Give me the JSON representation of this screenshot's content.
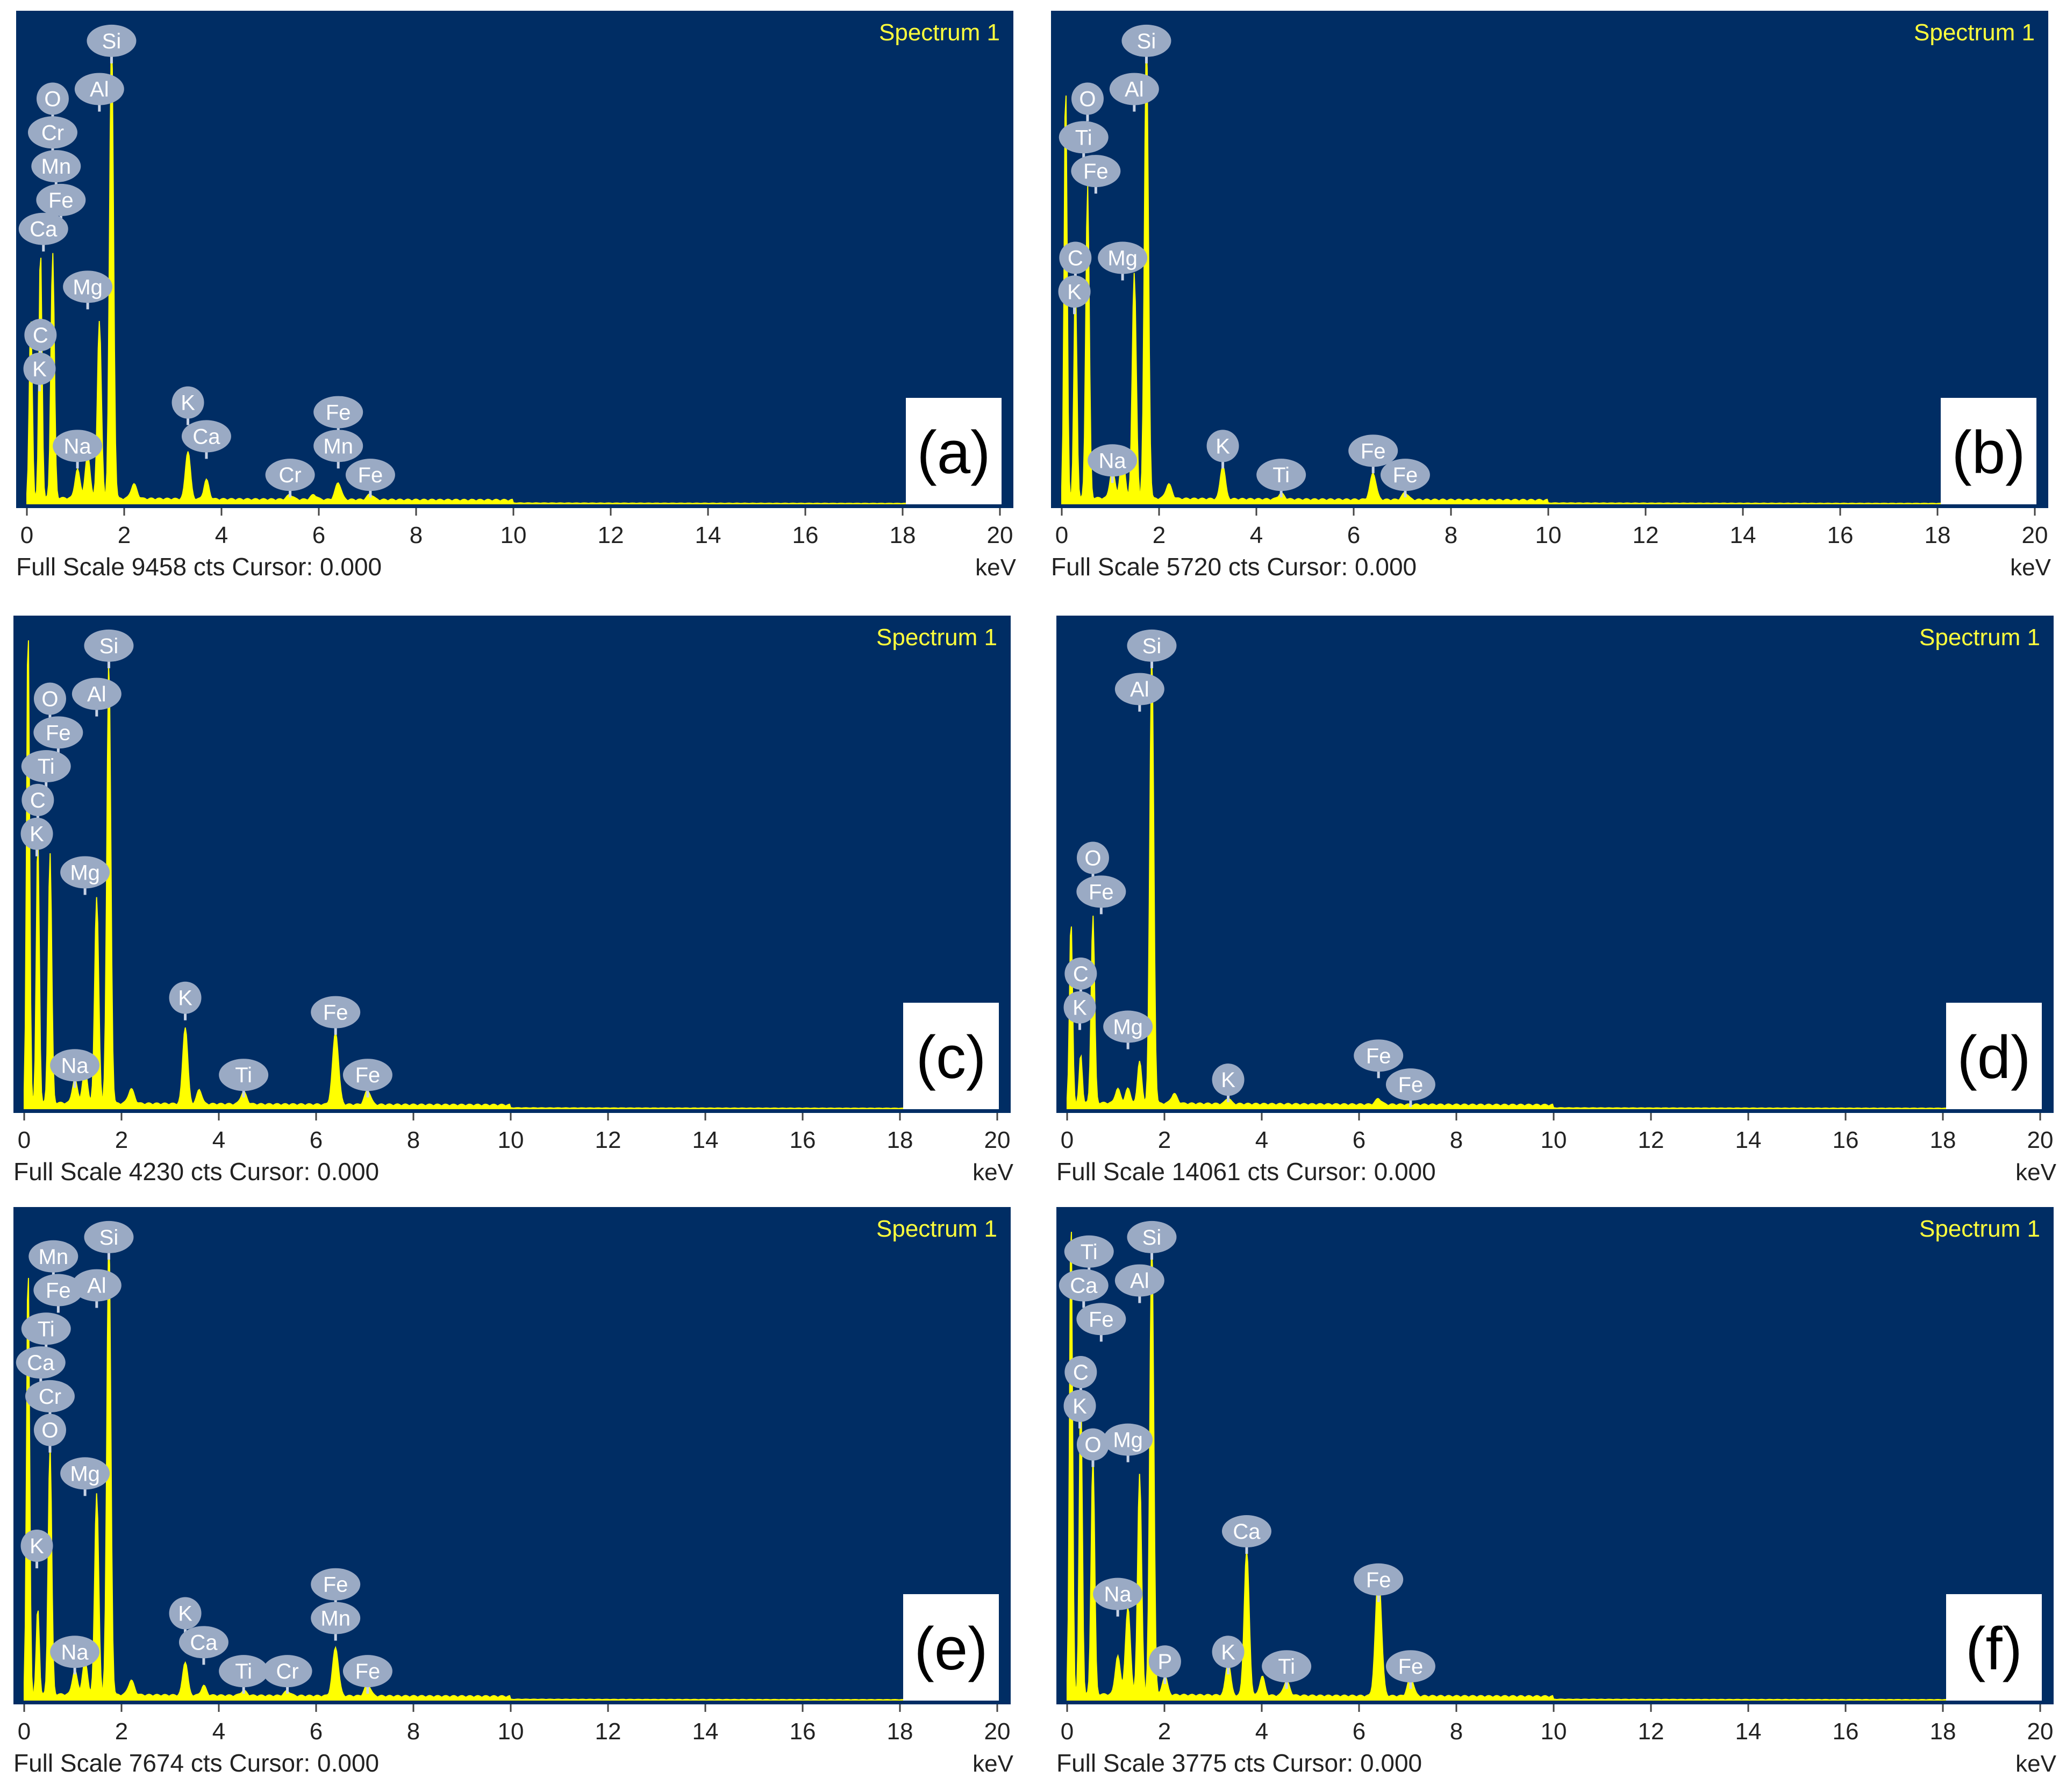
{
  "colors": {
    "plot_background": "#002d64",
    "spectrum": "#ffff00",
    "spectrum_title": "#ffff3c",
    "element_marker": "#9aaac4",
    "marker_line": "#c8d2e4"
  },
  "chart_data": [
    {
      "type": "area",
      "panel": "(a)",
      "title": "Spectrum 1",
      "xlabel": "keV",
      "xlim": [
        0,
        20
      ],
      "x_ticks": [
        0,
        2,
        4,
        6,
        8,
        10,
        12,
        14,
        16,
        18,
        20
      ],
      "full_scale_cts": 9458,
      "footer": "Full Scale 9458 cts Cursor: 0.000",
      "peaks": [
        {
          "x": 0.08,
          "y": 0.38,
          "w": 0.03
        },
        {
          "x": 0.28,
          "y": 0.52,
          "w": 0.03
        },
        {
          "x": 0.53,
          "y": 0.51,
          "w": 0.035
        },
        {
          "x": 1.04,
          "y": 0.06,
          "w": 0.05
        },
        {
          "x": 1.25,
          "y": 0.09,
          "w": 0.05
        },
        {
          "x": 1.49,
          "y": 0.37,
          "w": 0.04
        },
        {
          "x": 1.74,
          "y": 0.96,
          "w": 0.04
        },
        {
          "x": 2.2,
          "y": 0.03,
          "w": 0.06
        },
        {
          "x": 3.31,
          "y": 0.1,
          "w": 0.05
        },
        {
          "x": 3.69,
          "y": 0.04,
          "w": 0.05
        },
        {
          "x": 5.41,
          "y": 0.01,
          "w": 0.06
        },
        {
          "x": 5.9,
          "y": 0.01,
          "w": 0.06
        },
        {
          "x": 6.4,
          "y": 0.035,
          "w": 0.06
        },
        {
          "x": 7.06,
          "y": 0.012,
          "w": 0.06
        }
      ],
      "markers": [
        {
          "el": "Si",
          "x": 1.74,
          "y": 0.96
        },
        {
          "el": "Al",
          "x": 1.49,
          "y": 0.86
        },
        {
          "el": "O",
          "x": 0.53,
          "y": 0.84
        },
        {
          "el": "Cr",
          "x": 0.53,
          "y": 0.77
        },
        {
          "el": "Mn",
          "x": 0.6,
          "y": 0.7
        },
        {
          "el": "Fe",
          "x": 0.7,
          "y": 0.63
        },
        {
          "el": "Ca",
          "x": 0.34,
          "y": 0.57
        },
        {
          "el": "Mg",
          "x": 1.25,
          "y": 0.45
        },
        {
          "el": "C",
          "x": 0.28,
          "y": 0.35
        },
        {
          "el": "K",
          "x": 0.26,
          "y": 0.28
        },
        {
          "el": "Na",
          "x": 1.04,
          "y": 0.12
        },
        {
          "el": "K",
          "x": 3.31,
          "y": 0.21
        },
        {
          "el": "Ca",
          "x": 3.69,
          "y": 0.14
        },
        {
          "el": "Fe",
          "x": 6.4,
          "y": 0.19
        },
        {
          "el": "Mn",
          "x": 6.4,
          "y": 0.12
        },
        {
          "el": "Cr",
          "x": 5.41,
          "y": 0.06
        },
        {
          "el": "Fe",
          "x": 7.06,
          "y": 0.06
        }
      ]
    },
    {
      "type": "area",
      "panel": "(b)",
      "title": "Spectrum 1",
      "xlabel": "keV",
      "xlim": [
        0,
        20
      ],
      "x_ticks": [
        0,
        2,
        4,
        6,
        8,
        10,
        12,
        14,
        16,
        18,
        20
      ],
      "full_scale_cts": 5720,
      "footer": "Full Scale 5720 cts Cursor: 0.000",
      "peaks": [
        {
          "x": 0.08,
          "y": 0.87,
          "w": 0.03
        },
        {
          "x": 0.28,
          "y": 0.45,
          "w": 0.03
        },
        {
          "x": 0.53,
          "y": 0.65,
          "w": 0.035
        },
        {
          "x": 1.04,
          "y": 0.06,
          "w": 0.05
        },
        {
          "x": 1.25,
          "y": 0.09,
          "w": 0.05
        },
        {
          "x": 1.49,
          "y": 0.47,
          "w": 0.04
        },
        {
          "x": 1.74,
          "y": 0.96,
          "w": 0.04
        },
        {
          "x": 2.2,
          "y": 0.03,
          "w": 0.06
        },
        {
          "x": 3.31,
          "y": 0.07,
          "w": 0.05
        },
        {
          "x": 4.51,
          "y": 0.012,
          "w": 0.06
        },
        {
          "x": 6.4,
          "y": 0.055,
          "w": 0.06
        },
        {
          "x": 7.06,
          "y": 0.015,
          "w": 0.06
        }
      ],
      "markers": [
        {
          "el": "Si",
          "x": 1.74,
          "y": 0.96
        },
        {
          "el": "Al",
          "x": 1.49,
          "y": 0.86
        },
        {
          "el": "O",
          "x": 0.53,
          "y": 0.84
        },
        {
          "el": "Ti",
          "x": 0.45,
          "y": 0.76
        },
        {
          "el": "Fe",
          "x": 0.7,
          "y": 0.69
        },
        {
          "el": "C",
          "x": 0.28,
          "y": 0.51
        },
        {
          "el": "Mg",
          "x": 1.25,
          "y": 0.51
        },
        {
          "el": "K",
          "x": 0.26,
          "y": 0.44
        },
        {
          "el": "Na",
          "x": 1.04,
          "y": 0.09
        },
        {
          "el": "K",
          "x": 3.31,
          "y": 0.12
        },
        {
          "el": "Ti",
          "x": 4.51,
          "y": 0.06
        },
        {
          "el": "Fe",
          "x": 6.4,
          "y": 0.11
        },
        {
          "el": "Fe",
          "x": 7.06,
          "y": 0.06
        }
      ]
    },
    {
      "type": "area",
      "panel": "(c)",
      "title": "Spectrum 1",
      "xlabel": "keV",
      "xlim": [
        0,
        20
      ],
      "x_ticks": [
        0,
        2,
        4,
        6,
        8,
        10,
        12,
        14,
        16,
        18,
        20
      ],
      "full_scale_cts": 4230,
      "footer": "Full Scale 4230 cts Cursor: 0.000",
      "peaks": [
        {
          "x": 0.08,
          "y": 1.0,
          "w": 0.03
        },
        {
          "x": 0.28,
          "y": 0.55,
          "w": 0.03
        },
        {
          "x": 0.53,
          "y": 0.52,
          "w": 0.035
        },
        {
          "x": 1.04,
          "y": 0.05,
          "w": 0.05
        },
        {
          "x": 1.25,
          "y": 0.07,
          "w": 0.05
        },
        {
          "x": 1.49,
          "y": 0.43,
          "w": 0.04
        },
        {
          "x": 1.74,
          "y": 0.92,
          "w": 0.04
        },
        {
          "x": 2.2,
          "y": 0.03,
          "w": 0.06
        },
        {
          "x": 3.31,
          "y": 0.16,
          "w": 0.05
        },
        {
          "x": 3.6,
          "y": 0.03,
          "w": 0.05
        },
        {
          "x": 4.51,
          "y": 0.025,
          "w": 0.06
        },
        {
          "x": 6.4,
          "y": 0.15,
          "w": 0.06
        },
        {
          "x": 7.06,
          "y": 0.03,
          "w": 0.06
        }
      ],
      "markers": [
        {
          "el": "Si",
          "x": 1.74,
          "y": 0.96
        },
        {
          "el": "Al",
          "x": 1.49,
          "y": 0.86
        },
        {
          "el": "O",
          "x": 0.53,
          "y": 0.85
        },
        {
          "el": "Fe",
          "x": 0.7,
          "y": 0.78
        },
        {
          "el": "Ti",
          "x": 0.45,
          "y": 0.71
        },
        {
          "el": "C",
          "x": 0.28,
          "y": 0.64
        },
        {
          "el": "K",
          "x": 0.26,
          "y": 0.57
        },
        {
          "el": "Mg",
          "x": 1.25,
          "y": 0.49
        },
        {
          "el": "Na",
          "x": 1.04,
          "y": 0.09
        },
        {
          "el": "K",
          "x": 3.31,
          "y": 0.23
        },
        {
          "el": "Fe",
          "x": 6.4,
          "y": 0.2
        },
        {
          "el": "Ti",
          "x": 4.51,
          "y": 0.07
        },
        {
          "el": "Fe",
          "x": 7.06,
          "y": 0.07
        }
      ]
    },
    {
      "type": "area",
      "panel": "(d)",
      "title": "Spectrum 1",
      "xlabel": "keV",
      "xlim": [
        0,
        20
      ],
      "x_ticks": [
        0,
        2,
        4,
        6,
        8,
        10,
        12,
        14,
        16,
        18,
        20
      ],
      "full_scale_cts": 14061,
      "footer": "Full Scale 14061 cts Cursor: 0.000",
      "peaks": [
        {
          "x": 0.08,
          "y": 0.38,
          "w": 0.03
        },
        {
          "x": 0.28,
          "y": 0.1,
          "w": 0.03
        },
        {
          "x": 0.53,
          "y": 0.39,
          "w": 0.035
        },
        {
          "x": 1.04,
          "y": 0.03,
          "w": 0.05
        },
        {
          "x": 1.25,
          "y": 0.03,
          "w": 0.05
        },
        {
          "x": 1.49,
          "y": 0.09,
          "w": 0.04
        },
        {
          "x": 1.74,
          "y": 0.94,
          "w": 0.04
        },
        {
          "x": 2.2,
          "y": 0.02,
          "w": 0.06
        },
        {
          "x": 3.31,
          "y": 0.012,
          "w": 0.05
        },
        {
          "x": 6.4,
          "y": 0.012,
          "w": 0.06
        }
      ],
      "markers": [
        {
          "el": "Si",
          "x": 1.74,
          "y": 0.96
        },
        {
          "el": "Al",
          "x": 1.49,
          "y": 0.87
        },
        {
          "el": "O",
          "x": 0.53,
          "y": 0.52
        },
        {
          "el": "Fe",
          "x": 0.7,
          "y": 0.45
        },
        {
          "el": "C",
          "x": 0.28,
          "y": 0.28
        },
        {
          "el": "K",
          "x": 0.26,
          "y": 0.21
        },
        {
          "el": "Mg",
          "x": 1.25,
          "y": 0.17
        },
        {
          "el": "K",
          "x": 3.31,
          "y": 0.06
        },
        {
          "el": "Fe",
          "x": 6.4,
          "y": 0.11
        },
        {
          "el": "Fe",
          "x": 7.06,
          "y": 0.05
        }
      ]
    },
    {
      "type": "area",
      "panel": "(e)",
      "title": "Spectrum 1",
      "xlabel": "keV",
      "xlim": [
        0,
        20
      ],
      "x_ticks": [
        0,
        2,
        4,
        6,
        8,
        10,
        12,
        14,
        16,
        18,
        20
      ],
      "full_scale_cts": 7674,
      "footer": "Full Scale 7674 cts Cursor: 0.000",
      "peaks": [
        {
          "x": 0.08,
          "y": 0.9,
          "w": 0.03
        },
        {
          "x": 0.28,
          "y": 0.18,
          "w": 0.03
        },
        {
          "x": 0.53,
          "y": 0.52,
          "w": 0.035
        },
        {
          "x": 1.04,
          "y": 0.05,
          "w": 0.05
        },
        {
          "x": 1.25,
          "y": 0.07,
          "w": 0.05
        },
        {
          "x": 1.49,
          "y": 0.42,
          "w": 0.04
        },
        {
          "x": 1.74,
          "y": 0.96,
          "w": 0.04
        },
        {
          "x": 2.2,
          "y": 0.03,
          "w": 0.06
        },
        {
          "x": 3.31,
          "y": 0.07,
          "w": 0.05
        },
        {
          "x": 3.69,
          "y": 0.02,
          "w": 0.05
        },
        {
          "x": 4.51,
          "y": 0.01,
          "w": 0.06
        },
        {
          "x": 5.41,
          "y": 0.01,
          "w": 0.06
        },
        {
          "x": 6.4,
          "y": 0.1,
          "w": 0.06
        },
        {
          "x": 7.06,
          "y": 0.025,
          "w": 0.06
        }
      ],
      "markers": [
        {
          "el": "Si",
          "x": 1.74,
          "y": 0.96
        },
        {
          "el": "Mn",
          "x": 0.6,
          "y": 0.92
        },
        {
          "el": "Fe",
          "x": 0.7,
          "y": 0.85
        },
        {
          "el": "Al",
          "x": 1.49,
          "y": 0.86
        },
        {
          "el": "Ti",
          "x": 0.45,
          "y": 0.77
        },
        {
          "el": "Ca",
          "x": 0.34,
          "y": 0.7
        },
        {
          "el": "Cr",
          "x": 0.53,
          "y": 0.63
        },
        {
          "el": "O",
          "x": 0.53,
          "y": 0.56
        },
        {
          "el": "Mg",
          "x": 1.25,
          "y": 0.47
        },
        {
          "el": "K",
          "x": 0.26,
          "y": 0.32
        },
        {
          "el": "Na",
          "x": 1.04,
          "y": 0.1
        },
        {
          "el": "K",
          "x": 3.31,
          "y": 0.18
        },
        {
          "el": "Ca",
          "x": 3.69,
          "y": 0.12
        },
        {
          "el": "Fe",
          "x": 6.4,
          "y": 0.24
        },
        {
          "el": "Mn",
          "x": 6.4,
          "y": 0.17
        },
        {
          "el": "Ti",
          "x": 4.51,
          "y": 0.06
        },
        {
          "el": "Cr",
          "x": 5.41,
          "y": 0.06
        },
        {
          "el": "Fe",
          "x": 7.06,
          "y": 0.06
        }
      ]
    },
    {
      "type": "area",
      "panel": "(f)",
      "title": "Spectrum 1",
      "xlabel": "keV",
      "xlim": [
        0,
        20
      ],
      "x_ticks": [
        0,
        2,
        4,
        6,
        8,
        10,
        12,
        14,
        16,
        18,
        20
      ],
      "full_scale_cts": 3775,
      "footer": "Full Scale 3775 cts Cursor: 0.000",
      "peaks": [
        {
          "x": 0.08,
          "y": 1.0,
          "w": 0.03
        },
        {
          "x": 0.28,
          "y": 0.65,
          "w": 0.03
        },
        {
          "x": 0.53,
          "y": 0.5,
          "w": 0.035
        },
        {
          "x": 1.04,
          "y": 0.08,
          "w": 0.05
        },
        {
          "x": 1.25,
          "y": 0.18,
          "w": 0.05
        },
        {
          "x": 1.49,
          "y": 0.46,
          "w": 0.04
        },
        {
          "x": 1.74,
          "y": 0.95,
          "w": 0.04
        },
        {
          "x": 2.01,
          "y": 0.04,
          "w": 0.05
        },
        {
          "x": 3.31,
          "y": 0.07,
          "w": 0.05
        },
        {
          "x": 3.69,
          "y": 0.3,
          "w": 0.05
        },
        {
          "x": 4.01,
          "y": 0.04,
          "w": 0.05
        },
        {
          "x": 4.51,
          "y": 0.03,
          "w": 0.06
        },
        {
          "x": 6.4,
          "y": 0.26,
          "w": 0.06
        },
        {
          "x": 7.06,
          "y": 0.04,
          "w": 0.06
        }
      ],
      "markers": [
        {
          "el": "Ti",
          "x": 0.45,
          "y": 0.93
        },
        {
          "el": "Si",
          "x": 1.74,
          "y": 0.96
        },
        {
          "el": "Ca",
          "x": 0.34,
          "y": 0.86
        },
        {
          "el": "Al",
          "x": 1.49,
          "y": 0.87
        },
        {
          "el": "Fe",
          "x": 0.7,
          "y": 0.79
        },
        {
          "el": "C",
          "x": 0.28,
          "y": 0.68
        },
        {
          "el": "K",
          "x": 0.26,
          "y": 0.61
        },
        {
          "el": "O",
          "x": 0.53,
          "y": 0.53
        },
        {
          "el": "Mg",
          "x": 1.25,
          "y": 0.54
        },
        {
          "el": "Ca",
          "x": 3.69,
          "y": 0.35
        },
        {
          "el": "Na",
          "x": 1.04,
          "y": 0.22
        },
        {
          "el": "Fe",
          "x": 6.4,
          "y": 0.25
        },
        {
          "el": "P",
          "x": 2.01,
          "y": 0.08
        },
        {
          "el": "K",
          "x": 3.31,
          "y": 0.1
        },
        {
          "el": "Ti",
          "x": 4.51,
          "y": 0.07
        },
        {
          "el": "Fe",
          "x": 7.06,
          "y": 0.07
        }
      ]
    }
  ]
}
